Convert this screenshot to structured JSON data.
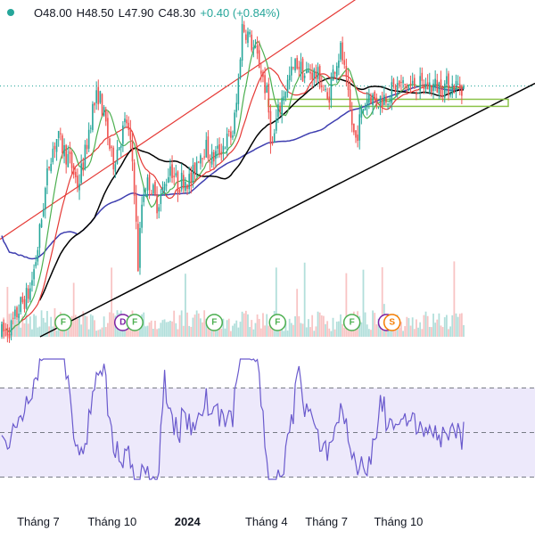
{
  "ohlc": {
    "open_label": "O",
    "open": "48.00",
    "high_label": "H",
    "high": "48.50",
    "low_label": "L",
    "low": "47.90",
    "close_label": "C",
    "close": "48.30",
    "change": "+0.40 (+0.84%)"
  },
  "colors": {
    "up": "#26a69a",
    "down": "#ef5350",
    "ma_fast": "#4caf50",
    "ma_mid": "#e53935",
    "ma_slow": "#000000",
    "ma_long": "#3f3fb0",
    "rsi": "#6a5acd",
    "rsi_band": "#ede9fb",
    "channel_upper": "#e53935",
    "trendline": "#000000",
    "support_zone": "#8bc34a"
  },
  "chart_data": {
    "type": "candlestick",
    "x_ticks": [
      {
        "label": "Tháng 7",
        "bold": false,
        "pos": 0.079
      },
      {
        "label": "Tháng 10",
        "bold": false,
        "pos": 0.239
      },
      {
        "label": "2024",
        "bold": true,
        "pos": 0.402
      },
      {
        "label": "Tháng 4",
        "bold": false,
        "pos": 0.573
      },
      {
        "label": "Tháng 7",
        "bold": false,
        "pos": 0.703
      },
      {
        "label": "Tháng 10",
        "bold": false,
        "pos": 0.859
      }
    ],
    "last_price": 48.3,
    "y_range": [
      20,
      57
    ],
    "events": [
      {
        "label": "F",
        "pos": 0.133,
        "kind": "F"
      },
      {
        "label": "D",
        "pos": 0.262,
        "kind": "D"
      },
      {
        "label": "F",
        "pos": 0.288,
        "kind": "F"
      },
      {
        "label": "F",
        "pos": 0.46,
        "kind": "F"
      },
      {
        "label": "F",
        "pos": 0.597,
        "kind": "F"
      },
      {
        "label": "F",
        "pos": 0.758,
        "kind": "F"
      },
      {
        "label": "",
        "pos": 0.833,
        "kind": "D"
      },
      {
        "label": "S",
        "pos": 0.845,
        "kind": "S"
      }
    ],
    "rsi": {
      "levels": [
        70,
        50,
        30
      ],
      "range": [
        25,
        85
      ]
    },
    "price_path": [
      [
        0.0,
        20.4
      ],
      [
        0.02,
        21.0
      ],
      [
        0.04,
        23.5
      ],
      [
        0.06,
        25.0
      ],
      [
        0.075,
        29.0
      ],
      [
        0.09,
        35.0
      ],
      [
        0.105,
        40.5
      ],
      [
        0.12,
        42.5
      ],
      [
        0.135,
        41.0
      ],
      [
        0.15,
        39.5
      ],
      [
        0.165,
        37.0
      ],
      [
        0.18,
        40.5
      ],
      [
        0.195,
        45.5
      ],
      [
        0.21,
        47.5
      ],
      [
        0.225,
        44.0
      ],
      [
        0.24,
        39.5
      ],
      [
        0.255,
        42.0
      ],
      [
        0.27,
        44.5
      ],
      [
        0.285,
        39.0
      ],
      [
        0.295,
        28.0
      ],
      [
        0.305,
        36.5
      ],
      [
        0.32,
        37.5
      ],
      [
        0.335,
        35.0
      ],
      [
        0.35,
        36.5
      ],
      [
        0.365,
        39.5
      ],
      [
        0.38,
        37.0
      ],
      [
        0.395,
        38.0
      ],
      [
        0.41,
        37.5
      ],
      [
        0.425,
        40.5
      ],
      [
        0.44,
        41.5
      ],
      [
        0.455,
        40.0
      ],
      [
        0.47,
        41.0
      ],
      [
        0.485,
        42.0
      ],
      [
        0.5,
        43.0
      ],
      [
        0.51,
        47.0
      ],
      [
        0.52,
        55.0
      ],
      [
        0.53,
        54.5
      ],
      [
        0.545,
        52.5
      ],
      [
        0.56,
        50.5
      ],
      [
        0.575,
        47.0
      ],
      [
        0.585,
        41.0
      ],
      [
        0.595,
        44.5
      ],
      [
        0.61,
        47.5
      ],
      [
        0.625,
        49.5
      ],
      [
        0.64,
        51.0
      ],
      [
        0.655,
        49.5
      ],
      [
        0.67,
        50.0
      ],
      [
        0.69,
        49.0
      ],
      [
        0.705,
        46.5
      ],
      [
        0.72,
        50.5
      ],
      [
        0.735,
        52.5
      ],
      [
        0.745,
        48.5
      ],
      [
        0.755,
        45.0
      ],
      [
        0.765,
        42.0
      ],
      [
        0.78,
        45.5
      ],
      [
        0.795,
        47.5
      ],
      [
        0.81,
        46.5
      ],
      [
        0.825,
        47.0
      ],
      [
        0.84,
        47.5
      ],
      [
        0.855,
        48.3
      ]
    ]
  }
}
